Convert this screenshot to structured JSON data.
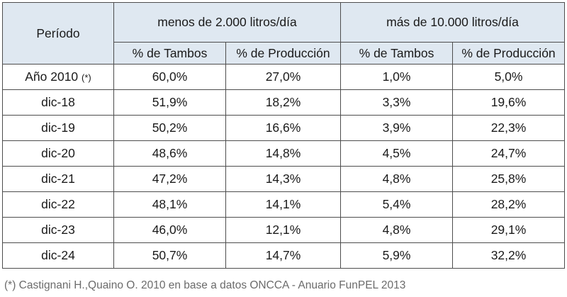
{
  "table": {
    "period_header": "Período",
    "group_headers": [
      "menos de 2.000 litros/día",
      "más de 10.000 litros/día"
    ],
    "sub_headers": [
      "% de Tambos",
      "% de Producción",
      "% de Tambos",
      "% de Producción"
    ],
    "rows": [
      {
        "period": "Año 2010",
        "mark": "(*)",
        "values": [
          "60,0%",
          "27,0%",
          "1,0%",
          "5,0%"
        ]
      },
      {
        "period": "dic-18",
        "values": [
          "51,9%",
          "18,2%",
          "3,3%",
          "19,6%"
        ]
      },
      {
        "period": "dic-19",
        "values": [
          "50,2%",
          "16,6%",
          "3,9%",
          "22,3%"
        ]
      },
      {
        "period": "dic-20",
        "values": [
          "48,6%",
          "14,8%",
          "4,5%",
          "24,7%"
        ]
      },
      {
        "period": "dic-21",
        "values": [
          "47,2%",
          "14,3%",
          "4,8%",
          "25,8%"
        ]
      },
      {
        "period": "dic-22",
        "values": [
          "48,1%",
          "14,1%",
          "5,4%",
          "28,2%"
        ]
      },
      {
        "period": "dic-23",
        "values": [
          "46,0%",
          "12,1%",
          "4,8%",
          "29,1%"
        ]
      },
      {
        "period": "dic-24",
        "values": [
          "50,7%",
          "14,7%",
          "5,9%",
          "32,2%"
        ]
      }
    ],
    "header_bg": "#dfe8f1",
    "border_color": "#4d4d4d"
  },
  "footnote": "(*) Castignani H.,Quaino O. 2010 en base a datos ONCCA - Anuario FunPEL 2013"
}
